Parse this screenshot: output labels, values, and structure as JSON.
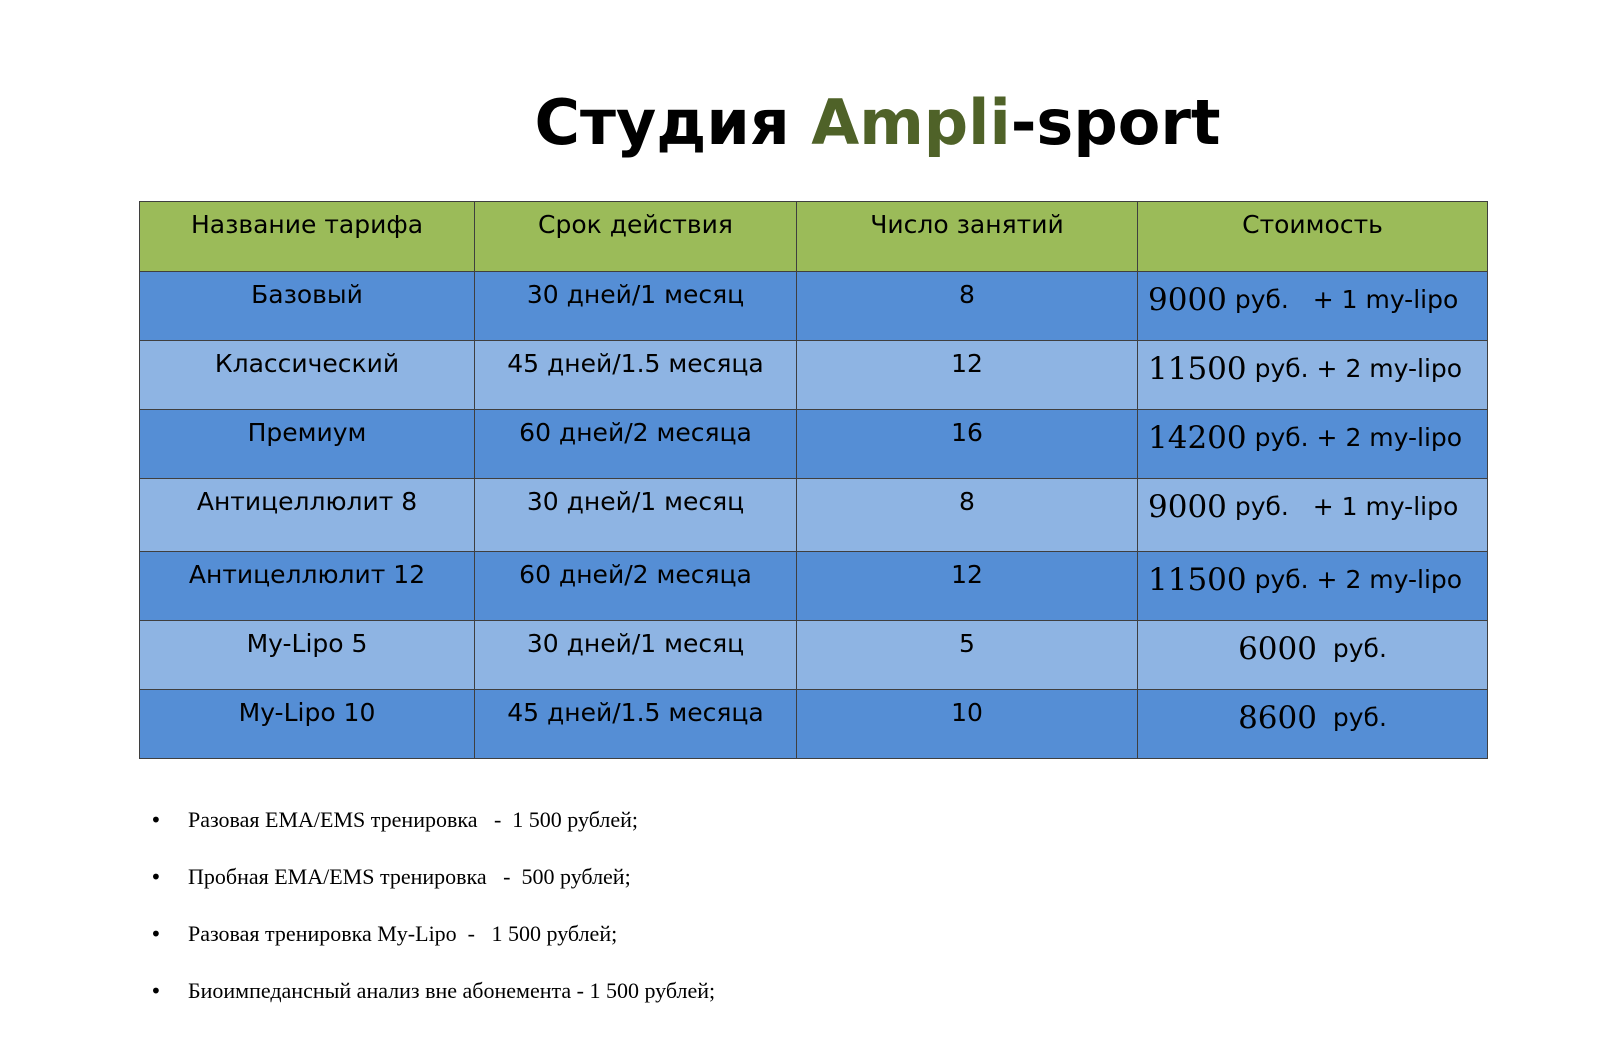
{
  "title": {
    "prefix": "Студия ",
    "accent": "Ampli",
    "suffix": "-sport"
  },
  "colors": {
    "header_bg": "#9bbb59",
    "row_dark": "#558ed5",
    "row_light": "#8eb4e3",
    "title_accent": "#4f6228"
  },
  "table": {
    "headers": [
      "Название тарифа",
      "Срок действия",
      "Число занятий",
      "Стоимость"
    ],
    "rows": [
      {
        "name": "Базовый",
        "term": "30 дней/1 месяц",
        "sessions": "8",
        "price": "9000",
        "price_rest": " руб.   + 1 my-lipo"
      },
      {
        "name": "Классический",
        "term": "45 дней/1.5 месяца",
        "sessions": "12",
        "price": "11500",
        "price_rest": " руб. + 2 my-lipo"
      },
      {
        "name": "Премиум",
        "term": "60 дней/2 месяца",
        "sessions": "16",
        "price": "14200",
        "price_rest": " руб. + 2 my-lipo"
      },
      {
        "name": "Антицеллюлит 8",
        "term": "30 дней/1 месяц",
        "sessions": "8",
        "price": "9000",
        "price_rest": " руб.   + 1 my-lipo"
      },
      {
        "name": "Антицеллюлит 12",
        "term": "60 дней/2 месяца",
        "sessions": "12",
        "price": "11500",
        "price_rest": " руб. + 2 my-lipo"
      },
      {
        "name": "My-Lipo 5",
        "term": "30 дней/1 месяц",
        "sessions": "5",
        "price": "6000",
        "price_rest": "  руб."
      },
      {
        "name": "My-Lipo 10",
        "term": "45 дней/1.5 месяца",
        "sessions": "10",
        "price": "8600",
        "price_rest": "  руб."
      }
    ]
  },
  "notes": [
    "Разовая EMA/EMS тренировка   -  1 500 рублей;",
    "Пробная EMA/EMS тренировка   -  500 рублей;",
    "Разовая тренировка My-Lipo  -   1 500 рублей;",
    "Биоимпедансный анализ вне абонемента - 1 500 рублей;"
  ],
  "bullet": "•"
}
